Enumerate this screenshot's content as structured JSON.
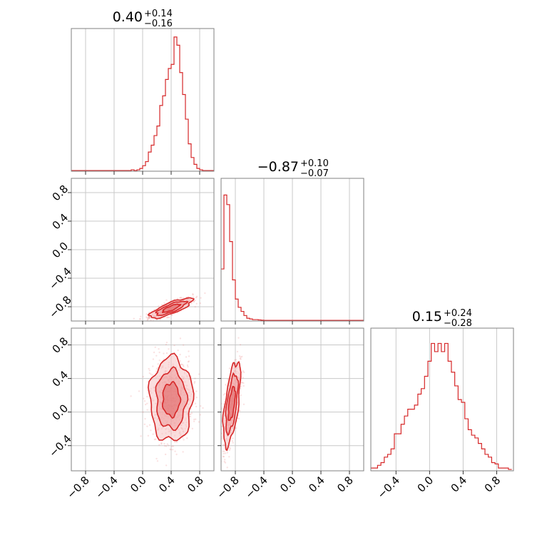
{
  "colors": {
    "series": "#d62728",
    "scatter": "#f2a0a0",
    "grid": "#c8c8c8",
    "frame": "#808080"
  },
  "chart_data": {
    "type": "corner",
    "grid": true,
    "params": [
      {
        "title_value": "0.40",
        "title_plus": "+0.14",
        "title_minus": "−0.16",
        "range": [
          -1.0,
          1.0
        ]
      },
      {
        "title_value": "−0.87",
        "title_plus": "+0.10",
        "title_minus": "−0.07",
        "range": [
          -1.0,
          1.0
        ]
      },
      {
        "title_value": "0.15",
        "title_plus": "+0.24",
        "title_minus": "−0.28",
        "range": [
          -0.7,
          1.0
        ]
      }
    ],
    "tick_labels": {
      "p0": [
        "−0.8",
        "−0.4",
        "0.0",
        "0.4",
        "0.8"
      ],
      "p1": [
        "−0.8",
        "−0.4",
        "0.0",
        "0.4",
        "0.8"
      ],
      "p2": [
        "−0.4",
        "0.0",
        "0.4",
        "0.8"
      ]
    },
    "ticks": {
      "p0": [
        -0.8,
        -0.4,
        0.0,
        0.4,
        0.8
      ],
      "p1": [
        -0.8,
        -0.4,
        0.0,
        0.4,
        0.8
      ],
      "p2": [
        -0.4,
        0.0,
        0.4,
        0.8
      ]
    },
    "histograms": {
      "p0": {
        "x": [
          -0.98,
          -0.94,
          -0.9,
          -0.86,
          -0.82,
          -0.78,
          -0.74,
          -0.7,
          -0.66,
          -0.62,
          -0.58,
          -0.54,
          -0.5,
          -0.46,
          -0.42,
          -0.38,
          -0.34,
          -0.3,
          -0.26,
          -0.22,
          -0.18,
          -0.14,
          -0.1,
          -0.06,
          -0.02,
          0.02,
          0.06,
          0.1,
          0.14,
          0.18,
          0.22,
          0.26,
          0.3,
          0.34,
          0.38,
          0.42,
          0.46,
          0.5,
          0.54,
          0.58,
          0.62,
          0.66,
          0.7,
          0.74,
          0.78,
          0.82,
          0.86,
          0.9,
          0.94,
          0.98
        ],
        "counts": [
          0.005,
          0.005,
          0.005,
          0.005,
          0.005,
          0.005,
          0.005,
          0.005,
          0.005,
          0.005,
          0.005,
          0.005,
          0.005,
          0.005,
          0.005,
          0.005,
          0.005,
          0.005,
          0.005,
          0.005,
          0.005,
          0.01,
          0.005,
          0.01,
          0.02,
          0.04,
          0.07,
          0.14,
          0.19,
          0.26,
          0.33,
          0.48,
          0.55,
          0.67,
          0.75,
          0.78,
          0.98,
          0.92,
          0.72,
          0.56,
          0.38,
          0.2,
          0.1,
          0.05,
          0.02,
          0.01,
          0.005,
          0.005,
          0.005,
          0.005
        ]
      },
      "p1": {
        "x": [
          -0.98,
          -0.94,
          -0.9,
          -0.86,
          -0.82,
          -0.78,
          -0.74,
          -0.7,
          -0.66,
          -0.62,
          -0.58,
          -0.54,
          -0.5,
          -0.46,
          -0.42,
          -0.38,
          -0.34,
          -0.3,
          -0.26,
          -0.22,
          -0.18,
          -0.14,
          -0.1,
          -0.06,
          -0.02,
          0.02,
          0.06,
          0.1,
          0.14,
          0.18,
          0.22,
          0.26,
          0.3,
          0.34,
          0.38,
          0.42,
          0.46,
          0.5,
          0.54,
          0.58,
          0.62,
          0.66,
          0.7,
          0.74,
          0.78,
          0.82,
          0.86,
          0.9,
          0.94,
          0.98
        ],
        "counts": [
          0.38,
          0.92,
          0.85,
          0.58,
          0.3,
          0.16,
          0.1,
          0.07,
          0.04,
          0.02,
          0.015,
          0.01,
          0.01,
          0.008,
          0.006,
          0.005,
          0.005,
          0.005,
          0.005,
          0.005,
          0.005,
          0.005,
          0.005,
          0.005,
          0.005,
          0.005,
          0.005,
          0.005,
          0.005,
          0.005,
          0.005,
          0.005,
          0.005,
          0.005,
          0.005,
          0.005,
          0.005,
          0.005,
          0.005,
          0.005,
          0.005,
          0.005,
          0.005,
          0.005,
          0.005,
          0.005,
          0.005,
          0.005,
          0.005,
          0.005
        ]
      },
      "p2": {
        "x": [
          -0.68,
          -0.64,
          -0.6,
          -0.56,
          -0.52,
          -0.48,
          -0.44,
          -0.4,
          -0.36,
          -0.32,
          -0.28,
          -0.24,
          -0.2,
          -0.16,
          -0.12,
          -0.08,
          -0.04,
          0.0,
          0.04,
          0.08,
          0.12,
          0.16,
          0.2,
          0.24,
          0.28,
          0.32,
          0.36,
          0.4,
          0.44,
          0.48,
          0.52,
          0.56,
          0.6,
          0.64,
          0.68,
          0.72,
          0.76,
          0.8,
          0.84,
          0.88,
          0.92,
          0.96
        ],
        "counts": [
          0.02,
          0.02,
          0.04,
          0.06,
          0.1,
          0.12,
          0.16,
          0.27,
          0.27,
          0.34,
          0.4,
          0.45,
          0.45,
          0.48,
          0.56,
          0.6,
          0.69,
          0.8,
          0.93,
          0.87,
          0.93,
          0.87,
          0.93,
          0.8,
          0.72,
          0.62,
          0.52,
          0.5,
          0.38,
          0.3,
          0.26,
          0.24,
          0.2,
          0.16,
          0.12,
          0.1,
          0.06,
          0.05,
          0.02,
          0.02,
          0.02,
          0.01
        ]
      }
    },
    "scatter_2d": {
      "p1_vs_p0": {
        "center": [
          0.4,
          -0.82
        ],
        "spread": [
          0.15,
          0.07
        ],
        "corr": 0.8
      },
      "p2_vs_p0": {
        "center": [
          0.4,
          0.15
        ],
        "spread": [
          0.15,
          0.25
        ],
        "corr": 0.0
      },
      "p2_vs_p1": {
        "center": [
          -0.85,
          0.1
        ],
        "spread": [
          0.06,
          0.25
        ],
        "corr": 0.6
      }
    }
  }
}
